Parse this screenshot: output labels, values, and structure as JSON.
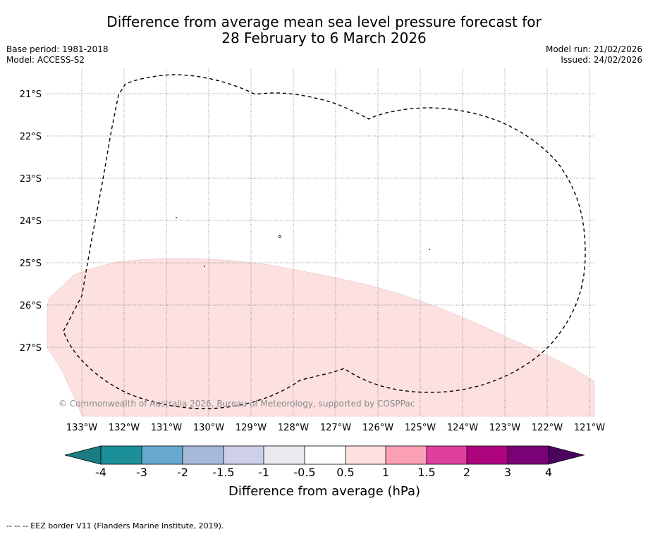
{
  "title": {
    "line1": "Difference from average mean sea level pressure forecast for",
    "line2": "28 February to 6 March 2026"
  },
  "meta": {
    "base_period": "Base period: 1981-2018",
    "model": "Model: ACCESS-S2",
    "model_run": "Model run: 21/02/2026",
    "issued": "Issued: 24/02/2026"
  },
  "map": {
    "lat_labels": [
      "21°S",
      "22°S",
      "23°S",
      "24°S",
      "25°S",
      "26°S",
      "27°S"
    ],
    "lon_labels": [
      "133°W",
      "132°W",
      "131°W",
      "130°W",
      "129°W",
      "128°W",
      "127°W",
      "126°W",
      "125°W",
      "124°W",
      "123°W",
      "122°W",
      "121°W"
    ],
    "anomaly_region_color": "#fde0e0",
    "copyright": "© Commonwealth of Australia 2026, Bureau of Meteorology, supported by COSPPac"
  },
  "colorbar": {
    "ticks": [
      "-4",
      "-3",
      "-2",
      "-1.5",
      "-1",
      "-0.5",
      "0.5",
      "1",
      "1.5",
      "2",
      "3",
      "4"
    ],
    "colors": [
      "#197d83",
      "#1b9099",
      "#68aacf",
      "#a6b9da",
      "#cdd0e6",
      "#ebeaee",
      "#ffffff",
      "#fde0e0",
      "#fba0b7",
      "#df3f9e",
      "#ae047d",
      "#7a0176",
      "#4a035f"
    ],
    "label": "Difference from average (hPa)"
  },
  "footnote": "-- -- -- EEZ border V11 (Flanders Marine Institute, 2019)."
}
